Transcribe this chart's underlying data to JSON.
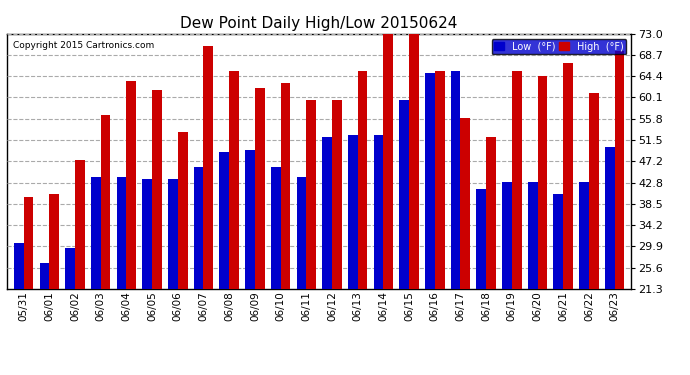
{
  "title": "Dew Point Daily High/Low 20150624",
  "copyright": "Copyright 2015 Cartronics.com",
  "dates": [
    "05/31",
    "06/01",
    "06/02",
    "06/03",
    "06/04",
    "06/05",
    "06/06",
    "06/07",
    "06/08",
    "06/09",
    "06/10",
    "06/11",
    "06/12",
    "06/13",
    "06/14",
    "06/15",
    "06/16",
    "06/17",
    "06/18",
    "06/19",
    "06/20",
    "06/21",
    "06/22",
    "06/23"
  ],
  "low_values": [
    30.5,
    26.5,
    29.5,
    44.0,
    44.0,
    43.5,
    43.5,
    46.0,
    49.0,
    49.5,
    46.0,
    44.0,
    52.0,
    52.5,
    52.5,
    59.5,
    65.0,
    65.5,
    41.5,
    43.0,
    43.0,
    40.5,
    43.0,
    50.0
  ],
  "high_values": [
    40.0,
    40.5,
    47.5,
    56.5,
    63.5,
    61.5,
    53.0,
    70.5,
    65.5,
    62.0,
    63.0,
    59.5,
    59.5,
    65.5,
    73.0,
    73.0,
    65.5,
    56.0,
    52.0,
    65.5,
    64.5,
    67.0,
    61.0,
    69.5
  ],
  "low_color": "#0000cc",
  "high_color": "#cc0000",
  "bg_color": "#ffffff",
  "grid_color": "#aaaaaa",
  "yticks": [
    73.0,
    68.7,
    64.4,
    60.1,
    55.8,
    51.5,
    47.2,
    42.8,
    38.5,
    34.2,
    29.9,
    25.6,
    21.3
  ],
  "ylim": [
    21.3,
    73.0
  ],
  "bar_width": 0.38,
  "outer_border_color": "#000000"
}
